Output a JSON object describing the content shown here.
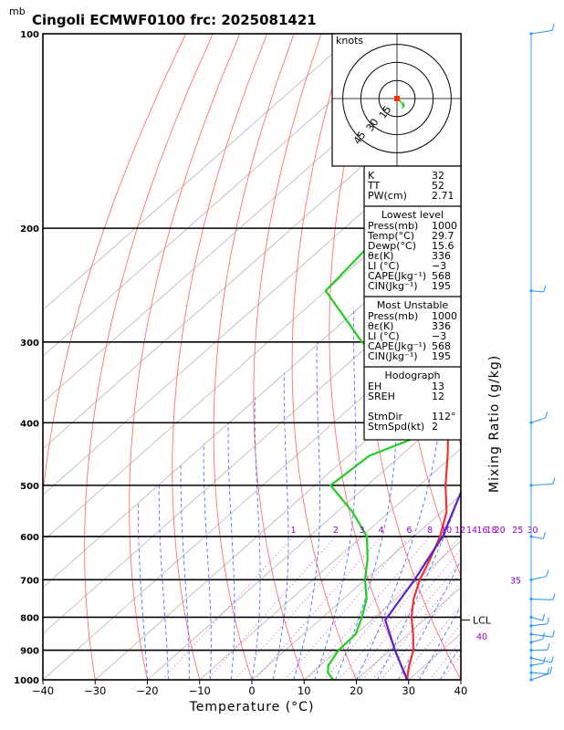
{
  "title": "Cingoli ECMWF0100  frc: 2025081421",
  "unit_top": "mb",
  "chart_data": {
    "type": "skew-t",
    "xlabel": "Temperature (°C)",
    "right_label": "Mixing Ratio  (g/kg)",
    "xlim": [
      -40,
      40
    ],
    "ylim_hpa": [
      1000,
      100
    ],
    "x_ticks": [
      -40,
      -30,
      -20,
      -10,
      0,
      10,
      20,
      30,
      40
    ],
    "x_tick_labels": [
      "−40",
      "−30",
      "−20",
      "−10",
      "0",
      "10",
      "20",
      "30",
      "40"
    ],
    "pressure_ticks": [
      1000,
      900,
      800,
      700,
      600,
      500,
      400,
      300,
      200,
      100
    ],
    "pressure_labels": [
      "1000",
      "900",
      "800",
      "700",
      "600",
      "500",
      "400",
      "300",
      "200",
      "100"
    ],
    "mixing_ratio_labels": [
      "1",
      "2",
      "3",
      "4",
      "6",
      "8",
      "10",
      "12",
      "14",
      "16",
      "18",
      "20",
      "25",
      "30",
      "35",
      "40"
    ],
    "lcl_label": "LCL",
    "lcl_pressure": 808,
    "series": [
      {
        "role": "temperature",
        "color": "#ee3333",
        "p": [
          1000,
          950,
          900,
          850,
          800,
          750,
          700,
          650,
          600,
          550,
          500,
          450,
          400,
          350,
          300,
          250,
          200,
          150,
          100
        ],
        "t": [
          29.7,
          27,
          24.5,
          21,
          17,
          13.5,
          10.5,
          8,
          5,
          1,
          -5,
          -11,
          -18,
          -26,
          -35,
          -48,
          -55,
          -61,
          -64
        ]
      },
      {
        "role": "dewpoint",
        "color": "#22cc22",
        "p": [
          1000,
          975,
          950,
          900,
          850,
          800,
          750,
          700,
          650,
          600,
          550,
          500,
          450,
          400,
          300,
          250,
          200,
          150,
          100
        ],
        "t": [
          15.6,
          13,
          11.5,
          10.2,
          10,
          7.5,
          4.5,
          0,
          -4,
          -9,
          -17,
          -27,
          -26,
          -17,
          -52,
          -70,
          -72,
          -71,
          -70
        ]
      },
      {
        "role": "parcel",
        "color": "#5522cc",
        "p": [
          1000,
          900,
          808,
          750,
          700,
          600,
          500,
          400,
          300,
          200,
          150,
          115
        ],
        "t": [
          29.7,
          21,
          12.6,
          11,
          9.5,
          5.5,
          -1.5,
          -13,
          -32,
          -58,
          -70,
          -76
        ]
      }
    ],
    "wind_pressures": [
      1000,
      975,
      950,
      925,
      900,
      875,
      850,
      825,
      800,
      750,
      700,
      600,
      500,
      400,
      250,
      100
    ],
    "hodograph": {
      "unit": "knots",
      "ring_labels": [
        "15",
        "30",
        "45"
      ],
      "ring_speeds": [
        15,
        30,
        45
      ],
      "trace": [
        [
          2,
          0
        ],
        [
          5,
          -4
        ],
        [
          10,
          -12
        ],
        [
          8,
          -15
        ],
        [
          11,
          -11
        ],
        [
          9,
          -5
        ]
      ]
    },
    "indices": [
      {
        "label": "K",
        "value": "32"
      },
      {
        "label": "TT",
        "value": "52"
      },
      {
        "label": "PW(cm)",
        "value": "2.71"
      }
    ],
    "lowest_level": {
      "header": "Lowest level",
      "rows": [
        {
          "label": "Press(mb)",
          "value": "1000"
        },
        {
          "label": "Temp(°C)",
          "value": "29.7"
        },
        {
          "label": "Dewp(°C)",
          "value": "15.6"
        },
        {
          "label": "θε(K)",
          "value": "336"
        },
        {
          "label": "LI (°C)",
          "value": "−3"
        },
        {
          "label": "CAPE(Jkg⁻¹)",
          "value": "568"
        },
        {
          "label": "CIN(Jkg⁻¹)",
          "value": "195"
        }
      ]
    },
    "most_unstable": {
      "header": "Most Unstable",
      "rows": [
        {
          "label": "Press(mb)",
          "value": "1000"
        },
        {
          "label": "θε(K)",
          "value": "336"
        },
        {
          "label": "LI (°C)",
          "value": "−3"
        },
        {
          "label": "CAPE(Jkg⁻¹)",
          "value": "568"
        },
        {
          "label": "CIN(Jkg⁻¹)",
          "value": "195"
        }
      ]
    },
    "hodograph_box": {
      "header": "Hodograph",
      "rows": [
        {
          "label": "EH",
          "value": "13"
        },
        {
          "label": "SREH",
          "value": "12"
        },
        {
          "label": "",
          "value": ""
        },
        {
          "label": "StmDir",
          "value": "112°"
        },
        {
          "label": "StmSpd(kt)",
          "value": "2"
        }
      ]
    }
  }
}
